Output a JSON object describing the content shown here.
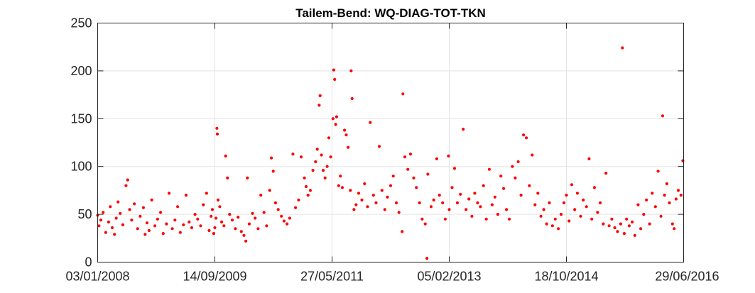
{
  "chart_data": {
    "type": "scatter",
    "title": "Tailem-Bend: WQ-DIAG-TOT-TKN",
    "xlabel": "",
    "ylabel": "",
    "x_axis_type": "date",
    "xlim": [
      "2008-01-03",
      "2016-06-29"
    ],
    "ylim": [
      0,
      250
    ],
    "x_ticks": [
      "2008-01-03",
      "2009-09-14",
      "2011-05-27",
      "2013-02-05",
      "2014-10-18",
      "2016-06-29"
    ],
    "x_tick_labels": [
      "03/01/2008",
      "14/09/2009",
      "27/05/2011",
      "05/02/2013",
      "18/10/2014",
      "29/06/2016"
    ],
    "y_ticks": [
      0,
      50,
      100,
      150,
      200,
      250
    ],
    "y_tick_labels": [
      "0",
      "50",
      "100",
      "150",
      "200",
      "250"
    ],
    "grid": true,
    "marker_color": "#ff0000",
    "series": [
      {
        "points": [
          [
            "2008-01-03",
            49
          ],
          [
            "2008-01-10",
            38
          ],
          [
            "2008-01-20",
            44
          ],
          [
            "2008-02-01",
            52
          ],
          [
            "2008-02-15",
            31
          ],
          [
            "2008-03-01",
            42
          ],
          [
            "2008-03-10",
            58
          ],
          [
            "2008-03-20",
            36
          ],
          [
            "2008-04-01",
            29
          ],
          [
            "2008-04-10",
            46
          ],
          [
            "2008-04-20",
            63
          ],
          [
            "2008-05-01",
            51
          ],
          [
            "2008-05-15",
            39
          ],
          [
            "2008-06-01",
            80
          ],
          [
            "2008-06-10",
            86
          ],
          [
            "2008-06-20",
            55
          ],
          [
            "2008-07-01",
            44
          ],
          [
            "2008-07-15",
            61
          ],
          [
            "2008-08-01",
            35
          ],
          [
            "2008-08-15",
            48
          ],
          [
            "2008-09-01",
            57
          ],
          [
            "2008-09-10",
            29
          ],
          [
            "2008-09-20",
            41
          ],
          [
            "2008-10-01",
            33
          ],
          [
            "2008-10-15",
            65
          ],
          [
            "2008-11-01",
            38
          ],
          [
            "2008-11-15",
            45
          ],
          [
            "2008-12-01",
            52
          ],
          [
            "2008-12-15",
            30
          ],
          [
            "2009-01-01",
            40
          ],
          [
            "2009-01-15",
            72
          ],
          [
            "2009-02-01",
            35
          ],
          [
            "2009-02-15",
            44
          ],
          [
            "2009-03-01",
            58
          ],
          [
            "2009-03-15",
            31
          ],
          [
            "2009-04-01",
            39
          ],
          [
            "2009-04-15",
            70
          ],
          [
            "2009-05-01",
            42
          ],
          [
            "2009-05-15",
            36
          ],
          [
            "2009-06-01",
            50
          ],
          [
            "2009-06-15",
            45
          ],
          [
            "2009-07-01",
            38
          ],
          [
            "2009-07-15",
            60
          ],
          [
            "2009-08-01",
            72
          ],
          [
            "2009-08-15",
            33
          ],
          [
            "2009-08-25",
            48
          ],
          [
            "2009-09-01",
            55
          ],
          [
            "2009-09-08",
            30
          ],
          [
            "2009-09-14",
            36
          ],
          [
            "2009-09-20",
            46
          ],
          [
            "2009-09-25",
            140
          ],
          [
            "2009-09-27",
            134
          ],
          [
            "2009-10-01",
            65
          ],
          [
            "2009-10-10",
            58
          ],
          [
            "2009-10-20",
            42
          ],
          [
            "2009-11-01",
            38
          ],
          [
            "2009-11-10",
            111
          ],
          [
            "2009-11-20",
            88
          ],
          [
            "2009-12-01",
            50
          ],
          [
            "2009-12-15",
            44
          ],
          [
            "2010-01-01",
            35
          ],
          [
            "2010-01-15",
            47
          ],
          [
            "2010-02-01",
            32
          ],
          [
            "2010-02-15",
            28
          ],
          [
            "2010-02-25",
            22
          ],
          [
            "2010-03-05",
            88
          ],
          [
            "2010-03-15",
            40
          ],
          [
            "2010-04-01",
            51
          ],
          [
            "2010-04-15",
            46
          ],
          [
            "2010-05-01",
            35
          ],
          [
            "2010-05-15",
            70
          ],
          [
            "2010-06-01",
            52
          ],
          [
            "2010-06-15",
            38
          ],
          [
            "2010-07-01",
            75
          ],
          [
            "2010-07-10",
            109
          ],
          [
            "2010-07-20",
            95
          ],
          [
            "2010-08-01",
            62
          ],
          [
            "2010-08-15",
            55
          ],
          [
            "2010-09-01",
            48
          ],
          [
            "2010-09-15",
            43
          ],
          [
            "2010-10-01",
            40
          ],
          [
            "2010-10-15",
            46
          ],
          [
            "2010-11-01",
            113
          ],
          [
            "2010-11-15",
            57
          ],
          [
            "2010-12-01",
            65
          ],
          [
            "2010-12-15",
            110
          ],
          [
            "2011-01-01",
            88
          ],
          [
            "2011-01-10",
            79
          ],
          [
            "2011-01-20",
            70
          ],
          [
            "2011-02-01",
            75
          ],
          [
            "2011-02-15",
            96
          ],
          [
            "2011-03-01",
            105
          ],
          [
            "2011-03-10",
            118
          ],
          [
            "2011-03-20",
            164
          ],
          [
            "2011-03-25",
            174
          ],
          [
            "2011-04-01",
            112
          ],
          [
            "2011-04-10",
            96
          ],
          [
            "2011-04-20",
            88
          ],
          [
            "2011-05-01",
            100
          ],
          [
            "2011-05-10",
            130
          ],
          [
            "2011-05-20",
            110
          ],
          [
            "2011-06-01",
            150
          ],
          [
            "2011-06-05",
            201
          ],
          [
            "2011-06-10",
            191
          ],
          [
            "2011-06-15",
            144
          ],
          [
            "2011-06-20",
            152
          ],
          [
            "2011-07-01",
            80
          ],
          [
            "2011-07-10",
            90
          ],
          [
            "2011-07-20",
            78
          ],
          [
            "2011-08-01",
            138
          ],
          [
            "2011-08-10",
            133
          ],
          [
            "2011-08-20",
            120
          ],
          [
            "2011-09-01",
            75
          ],
          [
            "2011-09-05",
            200
          ],
          [
            "2011-09-10",
            171
          ],
          [
            "2011-09-20",
            55
          ],
          [
            "2011-10-01",
            60
          ],
          [
            "2011-10-15",
            72
          ],
          [
            "2011-11-01",
            65
          ],
          [
            "2011-11-15",
            82
          ],
          [
            "2011-12-01",
            58
          ],
          [
            "2011-12-15",
            146
          ],
          [
            "2012-01-01",
            70
          ],
          [
            "2012-01-15",
            62
          ],
          [
            "2012-02-01",
            121
          ],
          [
            "2012-02-15",
            75
          ],
          [
            "2012-03-01",
            55
          ],
          [
            "2012-03-15",
            68
          ],
          [
            "2012-04-01",
            80
          ],
          [
            "2012-04-15",
            90
          ],
          [
            "2012-05-01",
            62
          ],
          [
            "2012-05-15",
            52
          ],
          [
            "2012-06-01",
            32
          ],
          [
            "2012-06-05",
            176
          ],
          [
            "2012-06-15",
            110
          ],
          [
            "2012-07-01",
            97
          ],
          [
            "2012-07-15",
            113
          ],
          [
            "2012-08-01",
            88
          ],
          [
            "2012-08-15",
            78
          ],
          [
            "2012-09-01",
            62
          ],
          [
            "2012-09-15",
            45
          ],
          [
            "2012-10-01",
            40
          ],
          [
            "2012-10-10",
            4
          ],
          [
            "2012-10-15",
            92
          ],
          [
            "2012-11-01",
            58
          ],
          [
            "2012-11-15",
            65
          ],
          [
            "2012-12-01",
            108
          ],
          [
            "2012-12-15",
            70
          ],
          [
            "2013-01-01",
            62
          ],
          [
            "2013-01-15",
            45
          ],
          [
            "2013-02-01",
            111
          ],
          [
            "2013-02-05",
            55
          ],
          [
            "2013-02-20",
            78
          ],
          [
            "2013-03-05",
            98
          ],
          [
            "2013-03-20",
            62
          ],
          [
            "2013-04-05",
            71
          ],
          [
            "2013-04-20",
            139
          ],
          [
            "2013-05-05",
            55
          ],
          [
            "2013-05-20",
            66
          ],
          [
            "2013-06-05",
            48
          ],
          [
            "2013-06-20",
            72
          ],
          [
            "2013-07-05",
            62
          ],
          [
            "2013-07-20",
            58
          ],
          [
            "2013-08-05",
            80
          ],
          [
            "2013-08-20",
            45
          ],
          [
            "2013-09-05",
            97
          ],
          [
            "2013-09-20",
            60
          ],
          [
            "2013-10-05",
            68
          ],
          [
            "2013-10-20",
            50
          ],
          [
            "2013-11-05",
            90
          ],
          [
            "2013-11-20",
            77
          ],
          [
            "2013-12-05",
            55
          ],
          [
            "2013-12-20",
            45
          ],
          [
            "2014-01-05",
            100
          ],
          [
            "2014-01-20",
            88
          ],
          [
            "2014-02-05",
            105
          ],
          [
            "2014-02-20",
            70
          ],
          [
            "2014-03-05",
            133
          ],
          [
            "2014-03-20",
            130
          ],
          [
            "2014-04-05",
            80
          ],
          [
            "2014-04-20",
            112
          ],
          [
            "2014-05-05",
            60
          ],
          [
            "2014-05-20",
            72
          ],
          [
            "2014-06-05",
            48
          ],
          [
            "2014-06-20",
            55
          ],
          [
            "2014-07-05",
            40
          ],
          [
            "2014-07-20",
            62
          ],
          [
            "2014-08-05",
            38
          ],
          [
            "2014-08-20",
            45
          ],
          [
            "2014-09-05",
            35
          ],
          [
            "2014-09-20",
            50
          ],
          [
            "2014-10-05",
            62
          ],
          [
            "2014-10-18",
            70
          ],
          [
            "2014-11-01",
            43
          ],
          [
            "2014-11-15",
            81
          ],
          [
            "2014-12-01",
            55
          ],
          [
            "2014-12-15",
            72
          ],
          [
            "2015-01-01",
            48
          ],
          [
            "2015-01-15",
            65
          ],
          [
            "2015-02-01",
            58
          ],
          [
            "2015-02-15",
            108
          ],
          [
            "2015-03-01",
            45
          ],
          [
            "2015-03-15",
            78
          ],
          [
            "2015-04-01",
            52
          ],
          [
            "2015-04-15",
            62
          ],
          [
            "2015-05-01",
            40
          ],
          [
            "2015-05-15",
            93
          ],
          [
            "2015-06-01",
            38
          ],
          [
            "2015-06-15",
            45
          ],
          [
            "2015-07-01",
            36
          ],
          [
            "2015-07-15",
            32
          ],
          [
            "2015-08-01",
            40
          ],
          [
            "2015-08-10",
            224
          ],
          [
            "2015-08-20",
            30
          ],
          [
            "2015-09-01",
            45
          ],
          [
            "2015-09-15",
            38
          ],
          [
            "2015-10-01",
            42
          ],
          [
            "2015-10-15",
            28
          ],
          [
            "2015-11-01",
            60
          ],
          [
            "2015-11-15",
            35
          ],
          [
            "2015-12-01",
            50
          ],
          [
            "2015-12-15",
            65
          ],
          [
            "2016-01-01",
            40
          ],
          [
            "2016-01-15",
            72
          ],
          [
            "2016-02-01",
            58
          ],
          [
            "2016-02-15",
            95
          ],
          [
            "2016-03-01",
            48
          ],
          [
            "2016-03-10",
            153
          ],
          [
            "2016-03-20",
            70
          ],
          [
            "2016-04-01",
            82
          ],
          [
            "2016-04-15",
            62
          ],
          [
            "2016-05-01",
            40
          ],
          [
            "2016-05-10",
            35
          ],
          [
            "2016-05-20",
            66
          ],
          [
            "2016-06-01",
            75
          ],
          [
            "2016-06-15",
            70
          ],
          [
            "2016-06-25",
            106
          ]
        ]
      }
    ]
  }
}
